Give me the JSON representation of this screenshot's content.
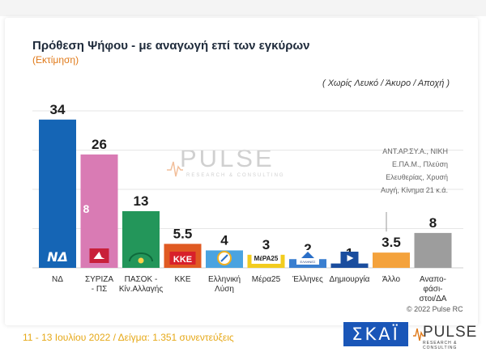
{
  "chart_data": {
    "type": "bar",
    "title": "Πρόθεση Ψήφου - με αναγωγή επί των εγκύρων",
    "subtitle": "(Εκτίμηση)",
    "note": "( Χωρίς Λευκό / Άκυρο / Αποχή )",
    "categories": [
      "ΝΔ",
      "ΣΥΡΙΖΑ - ΠΣ",
      "ΠΑΣΟΚ - Κίν.Αλλαγής",
      "ΚΚΕ",
      "Ελληνική Λύση",
      "Μέρα25",
      "Έλληνες",
      "Δημιουργία",
      "Άλλο",
      "Αναπο-φάσι-στοι/ΔΑ"
    ],
    "category_lines": [
      [
        "ΝΔ"
      ],
      [
        "ΣΥΡΙΖΑ",
        "- ΠΣ"
      ],
      [
        "ΠΑΣΟΚ -",
        "Κίν.Αλλαγής"
      ],
      [
        "ΚΚΕ"
      ],
      [
        "Ελληνική",
        "Λύση"
      ],
      [
        "Μέρα25"
      ],
      [
        "Έλληνες"
      ],
      [
        "Δημιουργία"
      ],
      [
        "Άλλο"
      ],
      [
        "Αναπο-",
        "φάσι-",
        "στοι/ΔΑ"
      ]
    ],
    "values": [
      34,
      26,
      13,
      5.5,
      4,
      3,
      2,
      1,
      3.5,
      8
    ],
    "value_labels": [
      "34",
      "26",
      "13",
      "5.5",
      "4",
      "3",
      "2",
      "1",
      "3.5",
      "8"
    ],
    "colors": [
      "#1565b5",
      "#d97bb4",
      "#23965a",
      "#e05a22",
      "#4aa3e0",
      "#f2cc1e",
      "#3a7fd0",
      "#1a4d9e",
      "#f4a23c",
      "#9d9d9d"
    ],
    "inner_label": "8",
    "ylim": [
      0,
      36
    ],
    "grid": true,
    "others_note": [
      "ΑΝΤ.ΑΡ.ΣΥ.Α., ΝΙΚΗ",
      "Ε.ΠΑ.Μ., Πλεύση",
      "Ελευθερίας, Χρυσή",
      "Αυγή, Κίνημα 21   κ.ά."
    ]
  },
  "watermark": {
    "main": "PULSE",
    "sub": "RESEARCH & CONSULTING"
  },
  "party_logos": [
    "ΝΔ",
    "ΚΚΕ",
    "ΜέΡΑ25",
    "ΕΛΛΗΝΕΣ"
  ],
  "copyright": "© 2022 Pulse RC",
  "footer": "11 - 13 Ιουλίου  2022  /  Δείγμα:  1.351 συνεντεύξεις",
  "brand": {
    "skai": "ΣΚΑΪ",
    "pulse": "PULSE",
    "pulse_sub": "RESEARCH & CONSULTING"
  }
}
